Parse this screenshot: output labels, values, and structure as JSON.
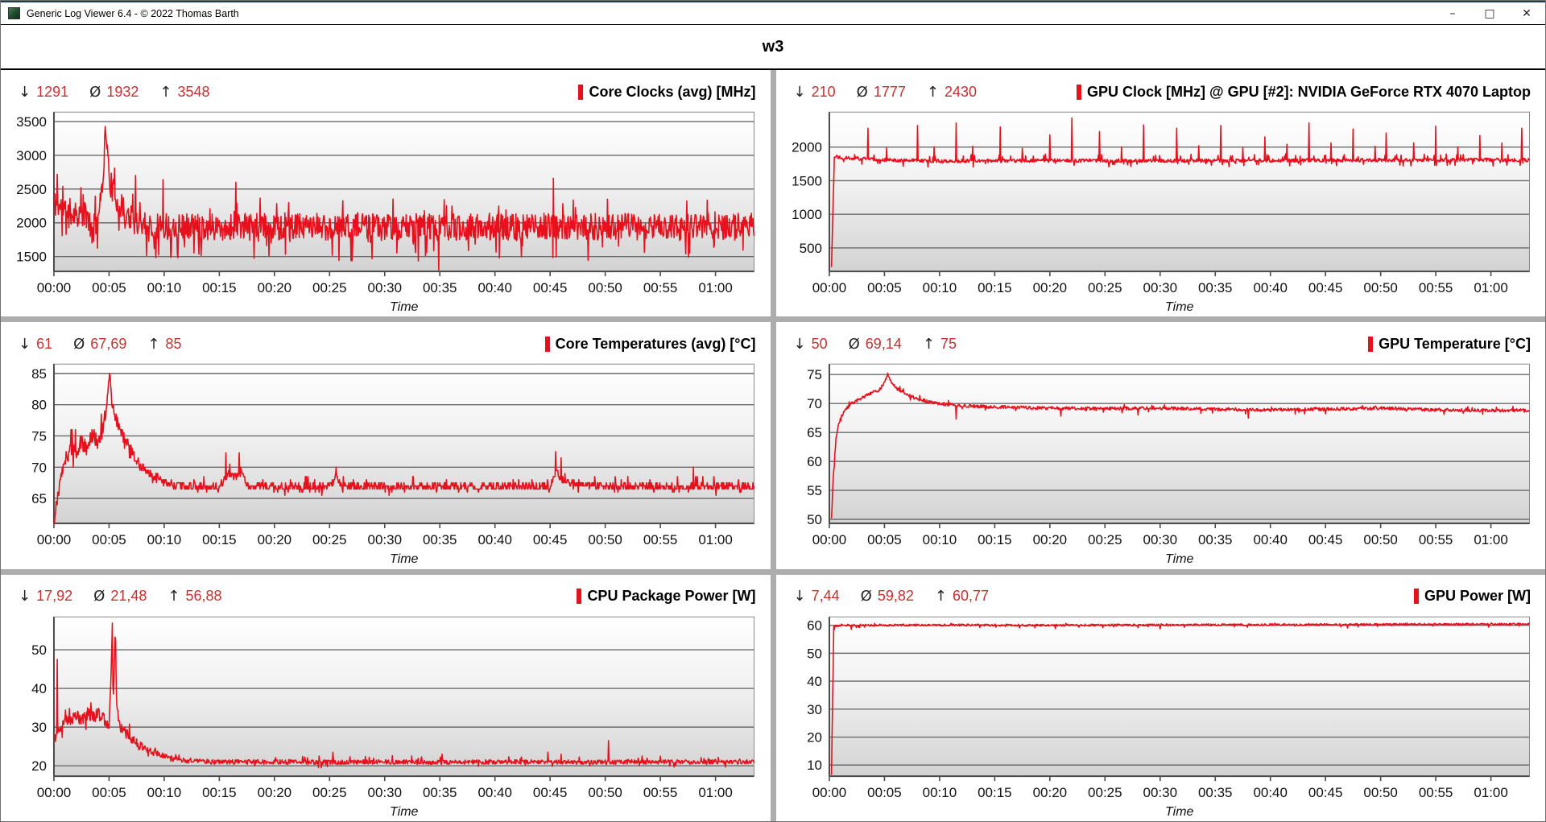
{
  "window": {
    "title": "Generic Log Viewer 6.4 - © 2022 Thomas Barth",
    "controls": {
      "minimize": "–",
      "maximize": "□",
      "close": "✕"
    }
  },
  "header": {
    "title": "w3"
  },
  "stats_symbols": {
    "min": "↓",
    "avg": "Ø",
    "max": "↑"
  },
  "colors": {
    "series": "#e8101c",
    "stat_value": "#c52f2f",
    "grid_line": "#6a6a6a",
    "axis_line": "#4a4a4a",
    "plot_bg_top": "#ffffff",
    "plot_bg_bottom": "#d2d2d2",
    "gutter": "#adadad"
  },
  "time_axis": {
    "label": "Time",
    "tick_minutes": [
      0,
      5,
      10,
      15,
      20,
      25,
      30,
      35,
      40,
      45,
      50,
      55,
      60
    ],
    "tick_labels": [
      "00:00",
      "00:05",
      "00:10",
      "00:15",
      "00:20",
      "00:25",
      "00:30",
      "00:35",
      "00:40",
      "00:45",
      "00:50",
      "00:55",
      "01:00"
    ],
    "t_max": 63.5
  },
  "chart_data": [
    {
      "type": "line",
      "id": "core-clocks",
      "title": "Core Clocks (avg) [MHz]",
      "stats": {
        "min": "1291",
        "avg": "1932",
        "max": "3548"
      },
      "y_ticks": [
        1500,
        2000,
        2500,
        3000,
        3500
      ],
      "y_range": [
        1280,
        3640
      ],
      "seed": 11,
      "noise": 200,
      "p_dn": 0.07,
      "dn": 1.5,
      "p_up": 0.04,
      "up": 1.2,
      "points": [
        [
          0,
          2300
        ],
        [
          1,
          2180
        ],
        [
          2,
          2150
        ],
        [
          3,
          2100
        ],
        [
          3.6,
          1900
        ],
        [
          4.2,
          2250
        ],
        [
          4.55,
          2950
        ],
        [
          4.7,
          3480
        ],
        [
          4.85,
          3000
        ],
        [
          5.1,
          2600
        ],
        [
          5.5,
          2400
        ],
        [
          6,
          2250
        ],
        [
          6.8,
          2100
        ],
        [
          8,
          2000
        ],
        [
          10,
          1950
        ],
        [
          15,
          1940
        ],
        [
          25,
          1940
        ],
        [
          35,
          1930
        ],
        [
          45,
          1945
        ],
        [
          55,
          1935
        ],
        [
          63.5,
          1950
        ]
      ],
      "spikes": [
        [
          0.3,
          2720
        ],
        [
          7.4,
          2700
        ],
        [
          9.9,
          2640
        ],
        [
          16.5,
          2600
        ],
        [
          45.3,
          2660
        ],
        [
          34.9,
          1300
        ]
      ]
    },
    {
      "type": "line",
      "id": "gpu-clock",
      "title": "GPU Clock [MHz] @ GPU [#2]: NVIDIA GeForce RTX 4070 Laptop",
      "stats": {
        "min": "210",
        "avg": "1777",
        "max": "2430"
      },
      "y_ticks": [
        500,
        1000,
        1500,
        2000
      ],
      "y_range": [
        150,
        2520
      ],
      "seed": 22,
      "noise": 26,
      "p_dn": 0.04,
      "dn": 2.5,
      "p_up": 0.05,
      "up": 2.8,
      "points": [
        [
          0.2,
          210
        ],
        [
          0.45,
          1870
        ],
        [
          1,
          1845
        ],
        [
          3,
          1825
        ],
        [
          6,
          1805
        ],
        [
          10,
          1790
        ],
        [
          20,
          1800
        ],
        [
          30,
          1795
        ],
        [
          40,
          1800
        ],
        [
          50,
          1805
        ],
        [
          60,
          1810
        ],
        [
          63.5,
          1805
        ]
      ],
      "spikes": [
        [
          3.5,
          2280
        ],
        [
          5.2,
          1990
        ],
        [
          8,
          2320
        ],
        [
          9.5,
          2000
        ],
        [
          11.5,
          2360
        ],
        [
          13,
          2010
        ],
        [
          15.5,
          2300
        ],
        [
          17.5,
          1980
        ],
        [
          20,
          2180
        ],
        [
          22,
          2430
        ],
        [
          24.5,
          2230
        ],
        [
          26.5,
          2000
        ],
        [
          28.5,
          2330
        ],
        [
          31.5,
          2280
        ],
        [
          33.5,
          2020
        ],
        [
          35.5,
          2320
        ],
        [
          37.5,
          1990
        ],
        [
          39.5,
          2150
        ],
        [
          41.5,
          2040
        ],
        [
          43.5,
          2360
        ],
        [
          45.5,
          2060
        ],
        [
          47.5,
          2270
        ],
        [
          49.5,
          2010
        ],
        [
          50.5,
          2210
        ],
        [
          53,
          2060
        ],
        [
          55,
          2310
        ],
        [
          57,
          2000
        ],
        [
          59,
          2170
        ],
        [
          61,
          2060
        ],
        [
          62.8,
          2280
        ]
      ]
    },
    {
      "type": "line",
      "id": "core-temps",
      "title": "Core Temperatures (avg) [°C]",
      "stats": {
        "min": "61",
        "avg": "67,69",
        "max": "85"
      },
      "y_ticks": [
        65,
        70,
        75,
        80,
        85
      ],
      "y_range": [
        61,
        86.5
      ],
      "seed": 33,
      "noise_points": [
        [
          0,
          1.2
        ],
        [
          5,
          1.3
        ],
        [
          8,
          0.9
        ],
        [
          10,
          0.6
        ],
        [
          63.5,
          0.6
        ]
      ],
      "p_dn": 0.02,
      "dn": 1.5,
      "p_up": 0.03,
      "up": 2.0,
      "quantize": 0.5,
      "points": [
        [
          0,
          61.5
        ],
        [
          0.6,
          68
        ],
        [
          1,
          71
        ],
        [
          1.5,
          73
        ],
        [
          2,
          72.5
        ],
        [
          2.5,
          74
        ],
        [
          3,
          73
        ],
        [
          3.5,
          75
        ],
        [
          4,
          74
        ],
        [
          4.4,
          76
        ],
        [
          4.8,
          80
        ],
        [
          5.05,
          85
        ],
        [
          5.3,
          80
        ],
        [
          5.6,
          78
        ],
        [
          6,
          76
        ],
        [
          6.5,
          74
        ],
        [
          7,
          72.5
        ],
        [
          7.5,
          71
        ],
        [
          8,
          70
        ],
        [
          9,
          68.5
        ],
        [
          10,
          67.5
        ],
        [
          11,
          67
        ],
        [
          13,
          66.8
        ],
        [
          15,
          66.8
        ],
        [
          15.8,
          69
        ],
        [
          16.3,
          68
        ],
        [
          17,
          69.5
        ],
        [
          17.5,
          67
        ],
        [
          20,
          66.8
        ],
        [
          25,
          66.8
        ],
        [
          25.6,
          68.5
        ],
        [
          26,
          67
        ],
        [
          30,
          66.8
        ],
        [
          35,
          66.9
        ],
        [
          40,
          66.8
        ],
        [
          45,
          67
        ],
        [
          45.6,
          69.5
        ],
        [
          46.2,
          67.5
        ],
        [
          50,
          66.9
        ],
        [
          55,
          66.8
        ],
        [
          60,
          66.9
        ],
        [
          63.5,
          66.9
        ]
      ],
      "spikes": [
        [
          15.6,
          72.3
        ],
        [
          16.8,
          72.3
        ],
        [
          25.6,
          70
        ],
        [
          45.5,
          72.5
        ],
        [
          46,
          71.5
        ],
        [
          58,
          70
        ]
      ]
    },
    {
      "type": "line",
      "id": "gpu-temp",
      "title": "GPU Temperature [°C]",
      "stats": {
        "min": "50",
        "avg": "69,14",
        "max": "75"
      },
      "y_ticks": [
        50,
        55,
        60,
        65,
        70,
        75
      ],
      "y_range": [
        49.3,
        76.8
      ],
      "seed": 44,
      "noise": 0.28,
      "p_dn": 0.02,
      "dn": 2.0,
      "p_up": 0.02,
      "up": 1.5,
      "points": [
        [
          0.2,
          50
        ],
        [
          0.35,
          57
        ],
        [
          0.6,
          64
        ],
        [
          1,
          67.5
        ],
        [
          1.5,
          69
        ],
        [
          2,
          70
        ],
        [
          3,
          71
        ],
        [
          4,
          72
        ],
        [
          4.5,
          72.3
        ],
        [
          5,
          73.5
        ],
        [
          5.3,
          75
        ],
        [
          5.7,
          73.5
        ],
        [
          6.2,
          72.5
        ],
        [
          7,
          71.5
        ],
        [
          8,
          70.8
        ],
        [
          9,
          70.3
        ],
        [
          10,
          70
        ],
        [
          12,
          69.6
        ],
        [
          15,
          69.4
        ],
        [
          20,
          69.2
        ],
        [
          25,
          69.1
        ],
        [
          30,
          69.2
        ],
        [
          35,
          69
        ],
        [
          40,
          68.9
        ],
        [
          45,
          69
        ],
        [
          50,
          69.2
        ],
        [
          55,
          68.9
        ],
        [
          60,
          68.8
        ],
        [
          63.5,
          68.8
        ]
      ],
      "spikes": [
        [
          11.5,
          67.3
        ],
        [
          21,
          67.8
        ],
        [
          28,
          68
        ],
        [
          38,
          67.5
        ]
      ]
    },
    {
      "type": "line",
      "id": "cpu-package-power",
      "title": "CPU Package Power [W]",
      "stats": {
        "min": "17,92",
        "avg": "21,48",
        "max": "56,88"
      },
      "y_ticks": [
        20,
        30,
        40,
        50
      ],
      "y_range": [
        17.3,
        58.5
      ],
      "seed": 55,
      "noise_points": [
        [
          0,
          1.6
        ],
        [
          5,
          1.7
        ],
        [
          7,
          1.2
        ],
        [
          10,
          0.6
        ],
        [
          63.5,
          0.55
        ]
      ],
      "p_dn": 0.03,
      "dn": 1.5,
      "p_up": 0.03,
      "up": 2.0,
      "points": [
        [
          0.05,
          27
        ],
        [
          0.5,
          30
        ],
        [
          1,
          31.5
        ],
        [
          1.5,
          32
        ],
        [
          2,
          33
        ],
        [
          2.5,
          32
        ],
        [
          3,
          33.5
        ],
        [
          3.5,
          32.5
        ],
        [
          4,
          33.5
        ],
        [
          4.5,
          32
        ],
        [
          5,
          31
        ],
        [
          5.25,
          50
        ],
        [
          5.4,
          38
        ],
        [
          5.55,
          53
        ],
        [
          5.7,
          36
        ],
        [
          6,
          30
        ],
        [
          6.5,
          28.5
        ],
        [
          7,
          27
        ],
        [
          7.5,
          26
        ],
        [
          8,
          25
        ],
        [
          9,
          23.5
        ],
        [
          10,
          22.5
        ],
        [
          11,
          21.8
        ],
        [
          12,
          21.3
        ],
        [
          15,
          21
        ],
        [
          20,
          21
        ],
        [
          25,
          20.9
        ],
        [
          30,
          21
        ],
        [
          35,
          20.9
        ],
        [
          40,
          21
        ],
        [
          45,
          21
        ],
        [
          50,
          20.9
        ],
        [
          55,
          21
        ],
        [
          60,
          21
        ],
        [
          63.5,
          21
        ]
      ],
      "spikes": [
        [
          0.3,
          47.5
        ],
        [
          5.3,
          56.9
        ],
        [
          5.6,
          52.5
        ],
        [
          25.3,
          23.5
        ],
        [
          35.2,
          23
        ],
        [
          44.8,
          23.5
        ],
        [
          46,
          23
        ],
        [
          50.3,
          26.5
        ],
        [
          55,
          22.5
        ]
      ]
    },
    {
      "type": "line",
      "id": "gpu-power",
      "title": "GPU Power [W]",
      "stats": {
        "min": "7,44",
        "avg": "59,82",
        "max": "60,77"
      },
      "y_ticks": [
        10,
        20,
        30,
        40,
        50,
        60
      ],
      "y_range": [
        6,
        63
      ],
      "seed": 66,
      "noise": 0.35,
      "p_dn": 0.02,
      "dn": 2.0,
      "p_up": 0.01,
      "up": 1.0,
      "v_max": 60.77,
      "points": [
        [
          0.2,
          7.4
        ],
        [
          0.4,
          59.5
        ],
        [
          1,
          60
        ],
        [
          10,
          60.1
        ],
        [
          20,
          60
        ],
        [
          30,
          60.1
        ],
        [
          40,
          60.2
        ],
        [
          50,
          60.3
        ],
        [
          60,
          60.4
        ],
        [
          63.5,
          60.4
        ]
      ],
      "spikes": [
        [
          2,
          58.5
        ],
        [
          20.5,
          58.8
        ],
        [
          30,
          58.7
        ],
        [
          47,
          59
        ]
      ]
    }
  ]
}
